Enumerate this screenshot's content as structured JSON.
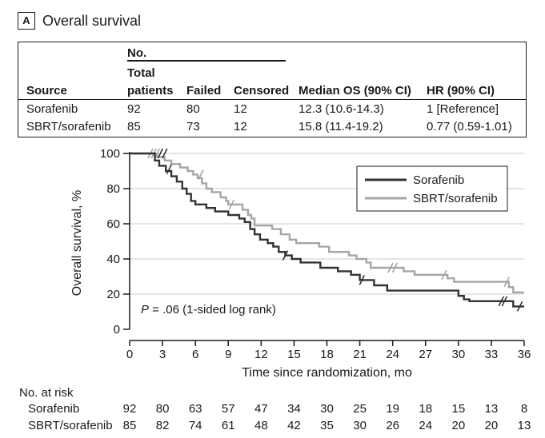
{
  "panel": {
    "letter": "A",
    "title": "Overall survival"
  },
  "table": {
    "group_header": "No.",
    "headers": {
      "source": "Source",
      "total_line1": "Total",
      "total_line2": "patients",
      "failed": "Failed",
      "censored": "Censored",
      "median": "Median OS (90% CI)",
      "hr": "HR (90% CI)"
    },
    "rows": [
      {
        "source": "Sorafenib",
        "total": "92",
        "failed": "80",
        "censored": "12",
        "median": "12.3 (10.6-14.3)",
        "hr": "1 [Reference]"
      },
      {
        "source": "SBRT/sorafenib",
        "total": "85",
        "failed": "73",
        "censored": "12",
        "median": "15.8 (11.4-19.2)",
        "hr": "0.77 (0.59-1.01)"
      }
    ]
  },
  "chart_data": {
    "type": "line",
    "subtype": "kaplan-meier step",
    "xlabel": "Time since randomization, mo",
    "ylabel": "Overall survival, %",
    "xlim": [
      0,
      36
    ],
    "ylim": [
      0,
      100
    ],
    "xticks": [
      0,
      3,
      6,
      9,
      12,
      15,
      18,
      21,
      24,
      27,
      30,
      33,
      36
    ],
    "yticks": [
      0,
      20,
      40,
      60,
      80,
      100
    ],
    "grid": true,
    "legend_position": "top-right",
    "annotation": {
      "p_symbol": "P",
      "p_text": " = .06 (1-sided log rank)"
    },
    "series": [
      {
        "name": "Sorafenib",
        "color": "#333333",
        "steps": [
          [
            0,
            100
          ],
          [
            2.3,
            96
          ],
          [
            2.7,
            93
          ],
          [
            3.3,
            90
          ],
          [
            3.8,
            87
          ],
          [
            4.3,
            84
          ],
          [
            4.8,
            80
          ],
          [
            5.2,
            77
          ],
          [
            5.6,
            73
          ],
          [
            6.0,
            71
          ],
          [
            7.0,
            69
          ],
          [
            7.8,
            67
          ],
          [
            9.0,
            65
          ],
          [
            10.0,
            63
          ],
          [
            10.5,
            61
          ],
          [
            11.0,
            57
          ],
          [
            11.4,
            54
          ],
          [
            11.9,
            51
          ],
          [
            12.6,
            49
          ],
          [
            13.1,
            47
          ],
          [
            13.6,
            44
          ],
          [
            14.2,
            42
          ],
          [
            14.8,
            40
          ],
          [
            15.6,
            38
          ],
          [
            17.4,
            35
          ],
          [
            19.0,
            33
          ],
          [
            20.2,
            31
          ],
          [
            21.0,
            28
          ],
          [
            22.3,
            25
          ],
          [
            23.5,
            22
          ],
          [
            30.0,
            19
          ],
          [
            30.5,
            17
          ],
          [
            31.0,
            16
          ],
          [
            35.0,
            13
          ]
        ],
        "end": 36,
        "censors": [
          [
            2.8,
            100
          ],
          [
            3.2,
            100
          ],
          [
            3.6,
            91
          ],
          [
            14.2,
            42
          ],
          [
            21.2,
            28
          ],
          [
            33.9,
            16
          ],
          [
            34.2,
            16
          ],
          [
            35.6,
            13
          ]
        ]
      },
      {
        "name": "SBRT/sorafenib",
        "color": "#a6a6a6",
        "steps": [
          [
            0,
            100
          ],
          [
            2.5,
            98
          ],
          [
            3.2,
            96
          ],
          [
            3.8,
            94
          ],
          [
            4.6,
            92
          ],
          [
            5.3,
            90
          ],
          [
            5.8,
            88
          ],
          [
            6.2,
            86
          ],
          [
            6.6,
            83
          ],
          [
            7.0,
            80
          ],
          [
            7.5,
            78
          ],
          [
            8.3,
            75
          ],
          [
            8.8,
            73
          ],
          [
            9.0,
            71
          ],
          [
            10.3,
            68
          ],
          [
            10.8,
            65
          ],
          [
            11.1,
            63
          ],
          [
            11.4,
            59
          ],
          [
            13.0,
            57
          ],
          [
            13.8,
            54
          ],
          [
            14.6,
            51
          ],
          [
            15.2,
            49
          ],
          [
            17.3,
            47
          ],
          [
            18.2,
            44
          ],
          [
            20.0,
            42
          ],
          [
            20.7,
            40
          ],
          [
            21.6,
            38
          ],
          [
            22.0,
            35
          ],
          [
            25.0,
            33
          ],
          [
            26.0,
            31
          ],
          [
            29.0,
            29
          ],
          [
            29.6,
            27
          ],
          [
            34.6,
            24
          ],
          [
            35.0,
            21
          ]
        ],
        "end": 36,
        "censors": [
          [
            1.9,
            100
          ],
          [
            2.2,
            100
          ],
          [
            2.5,
            100
          ],
          [
            6.5,
            88
          ],
          [
            9.3,
            71
          ],
          [
            23.8,
            35
          ],
          [
            24.2,
            35
          ],
          [
            28.7,
            31
          ],
          [
            34.4,
            27
          ]
        ]
      }
    ],
    "number_at_risk": {
      "title": "No. at risk",
      "times": [
        0,
        3,
        6,
        9,
        12,
        15,
        18,
        21,
        24,
        27,
        30,
        33,
        36
      ],
      "rows": [
        {
          "name": "Sorafenib",
          "values": [
            "92",
            "80",
            "63",
            "57",
            "47",
            "34",
            "30",
            "25",
            "19",
            "18",
            "15",
            "13",
            "8"
          ]
        },
        {
          "name": "SBRT/sorafenib",
          "values": [
            "85",
            "82",
            "74",
            "61",
            "48",
            "42",
            "35",
            "30",
            "26",
            "24",
            "20",
            "20",
            "13"
          ]
        }
      ]
    }
  }
}
